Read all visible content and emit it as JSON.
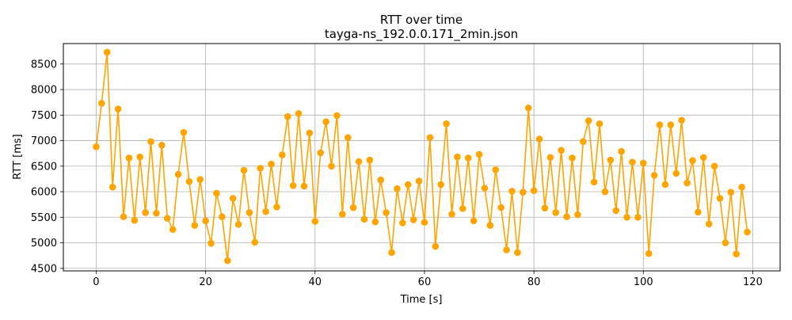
{
  "chart_data": {
    "type": "line",
    "title": "RTT over time",
    "subtitle": "tayga-ns_192.0.0.171_2min.json",
    "xlabel": "Time [s]",
    "ylabel": "RTT [ms]",
    "xlim": [
      -6,
      125
    ],
    "ylim": [
      4450,
      8900
    ],
    "xticks": [
      0,
      20,
      40,
      60,
      80,
      100,
      120
    ],
    "yticks": [
      4500,
      5000,
      5500,
      6000,
      6500,
      7000,
      7500,
      8000,
      8500
    ],
    "grid": true,
    "series": [
      {
        "color": "#FFA500",
        "marker": "circle",
        "x": [
          0,
          1,
          2,
          3,
          4,
          5,
          6,
          7,
          8,
          9,
          10,
          11,
          12,
          13,
          14,
          15,
          16,
          17,
          18,
          19,
          20,
          21,
          22,
          23,
          24,
          25,
          26,
          27,
          28,
          29,
          30,
          31,
          32,
          33,
          34,
          35,
          36,
          37,
          38,
          39,
          40,
          41,
          42,
          43,
          44,
          45,
          46,
          47,
          48,
          49,
          50,
          51,
          52,
          53,
          54,
          55,
          56,
          57,
          58,
          59,
          60,
          61,
          62,
          63,
          64,
          65,
          66,
          67,
          68,
          69,
          70,
          71,
          72,
          73,
          74,
          75,
          76,
          77,
          78,
          79,
          80,
          81,
          82,
          83,
          84,
          85,
          86,
          87,
          88,
          89,
          90,
          91,
          92,
          93,
          94,
          95,
          96,
          97,
          98,
          99,
          100,
          101,
          102,
          103,
          104,
          105,
          106,
          107,
          108,
          109,
          110,
          111,
          112,
          113,
          114,
          115,
          116,
          117,
          118,
          119
        ],
        "y": [
          6880,
          7730,
          8730,
          6090,
          7620,
          5510,
          6660,
          5440,
          6680,
          5590,
          6980,
          5580,
          6910,
          5480,
          5260,
          6340,
          7160,
          6200,
          5340,
          6240,
          5430,
          4990,
          5970,
          5510,
          4650,
          5870,
          5360,
          6420,
          5590,
          5010,
          6460,
          5610,
          6540,
          5700,
          6720,
          7470,
          6120,
          7530,
          6110,
          7150,
          5420,
          6760,
          7370,
          6500,
          7490,
          5560,
          7060,
          5690,
          6590,
          5460,
          6620,
          5410,
          6230,
          5590,
          4810,
          6060,
          5390,
          6140,
          5450,
          6210,
          5400,
          7060,
          4930,
          6140,
          7330,
          5560,
          6680,
          5670,
          6660,
          5430,
          6730,
          6070,
          5340,
          6430,
          5690,
          4860,
          6010,
          4810,
          5990,
          7640,
          6020,
          7030,
          5680,
          6670,
          5590,
          6810,
          5510,
          6660,
          5550,
          6980,
          7390,
          6190,
          7330,
          6000,
          6620,
          5630,
          6790,
          5500,
          6580,
          5500,
          6560,
          4790,
          6320,
          7310,
          6140,
          7310,
          6360,
          7400,
          6170,
          6610,
          5600,
          6670,
          5370,
          6500,
          5870,
          5000,
          5990,
          4780,
          6090,
          5210
        ]
      }
    ]
  }
}
